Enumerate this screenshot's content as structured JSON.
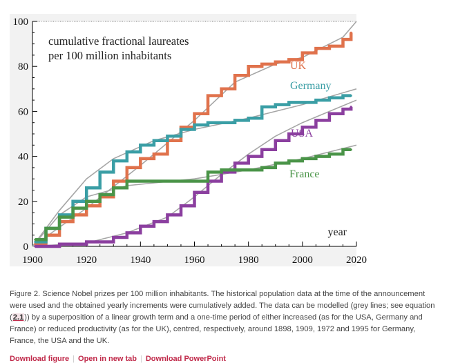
{
  "figure": {
    "caption_parts": [
      "Figure 2. Science Nobel prizes per 100 million inhabitants. The historical population data at the time of the announcement were used and the obtained yearly increments were cumulatively added. The data can be modelled (grey lines; see equation (",
      "2.1",
      ")) by a superposition of a linear growth term and a one-time period of either increased (as for the USA, Germany and France) or reduced productivity (as for the UK), centred, respectively, around 1898, 1909, 1972 and 1995 for Germany, France, the USA and the UK."
    ],
    "links": {
      "download_figure": "Download figure",
      "open_new_tab": "Open in new tab",
      "download_ppt": "Download PowerPoint"
    }
  },
  "chart_data": {
    "type": "line",
    "title": "cumulative fractional laureates\nper 100 million inhabitants",
    "xlabel": "year",
    "ylabel": "",
    "xlim": [
      1900,
      2020
    ],
    "ylim": [
      0,
      100
    ],
    "xticks": [
      1900,
      1920,
      1940,
      1960,
      1980,
      2000,
      2020
    ],
    "yticks": [
      0,
      20,
      40,
      60,
      80,
      100
    ],
    "grid": false,
    "series_labels_inline": true,
    "series": [
      {
        "name": "UK",
        "color": "#e0724c",
        "x": [
          1901,
          1905,
          1910,
          1915,
          1920,
          1925,
          1930,
          1935,
          1940,
          1945,
          1950,
          1955,
          1960,
          1965,
          1970,
          1975,
          1980,
          1985,
          1990,
          1995,
          2000,
          2005,
          2010,
          2015,
          2018
        ],
        "values": [
          1,
          5,
          11,
          14,
          18,
          22,
          29,
          35,
          39,
          41,
          47,
          53,
          59,
          67,
          70,
          76,
          80,
          81,
          82,
          83,
          86,
          88,
          89,
          92,
          95
        ],
        "model": [
          [
            1900,
            0
          ],
          [
            1920,
            17
          ],
          [
            1940,
            36
          ],
          [
            1960,
            56
          ],
          [
            1975,
            73
          ],
          [
            1990,
            81
          ],
          [
            2000,
            84
          ],
          [
            2015,
            93
          ],
          [
            2020,
            100
          ]
        ]
      },
      {
        "name": "Germany",
        "color": "#3a9ea5",
        "x": [
          1901,
          1905,
          1910,
          1915,
          1920,
          1925,
          1930,
          1935,
          1940,
          1945,
          1950,
          1955,
          1960,
          1965,
          1970,
          1975,
          1980,
          1985,
          1990,
          1995,
          2000,
          2005,
          2010,
          2015,
          2018
        ],
        "values": [
          2,
          8,
          14,
          20,
          26,
          33,
          38,
          42,
          45,
          47,
          49,
          52,
          54,
          55,
          55,
          56,
          57,
          62,
          63,
          64,
          64,
          65,
          66,
          67,
          67
        ],
        "model": [
          [
            1900,
            0
          ],
          [
            1910,
            16
          ],
          [
            1920,
            30
          ],
          [
            1930,
            39
          ],
          [
            1945,
            47
          ],
          [
            1960,
            52
          ],
          [
            1980,
            57
          ],
          [
            2000,
            63
          ],
          [
            2020,
            70
          ]
        ]
      },
      {
        "name": "USA",
        "color": "#8b3f9f",
        "x": [
          1901,
          1910,
          1920,
          1930,
          1935,
          1940,
          1945,
          1950,
          1955,
          1960,
          1965,
          1970,
          1975,
          1980,
          1985,
          1990,
          1995,
          2000,
          2005,
          2010,
          2015,
          2018
        ],
        "values": [
          0,
          1,
          2,
          4,
          6,
          9,
          11,
          14,
          18,
          24,
          29,
          33,
          37,
          40,
          43,
          47,
          50,
          53,
          56,
          59,
          61,
          62
        ],
        "model": [
          [
            1900,
            0
          ],
          [
            1920,
            1.5
          ],
          [
            1935,
            6
          ],
          [
            1950,
            13
          ],
          [
            1960,
            22
          ],
          [
            1970,
            32
          ],
          [
            1980,
            41
          ],
          [
            1990,
            49
          ],
          [
            2000,
            55
          ],
          [
            2010,
            60
          ],
          [
            2020,
            65
          ]
        ]
      },
      {
        "name": "France",
        "color": "#4a9448",
        "x": [
          1901,
          1905,
          1910,
          1915,
          1920,
          1925,
          1930,
          1935,
          1940,
          1945,
          1950,
          1955,
          1960,
          1965,
          1970,
          1975,
          1980,
          1985,
          1990,
          1995,
          2000,
          2005,
          2010,
          2015,
          2018
        ],
        "values": [
          3,
          8,
          13,
          17,
          20,
          23,
          26,
          29,
          29,
          29,
          29,
          29,
          29,
          33,
          34,
          34,
          34,
          35,
          37,
          38,
          39,
          40,
          41,
          43,
          43
        ],
        "model": [
          [
            1900,
            0
          ],
          [
            1910,
            14
          ],
          [
            1920,
            22
          ],
          [
            1935,
            27
          ],
          [
            1960,
            30
          ],
          [
            1980,
            34
          ],
          [
            2000,
            39
          ],
          [
            2020,
            45
          ]
        ]
      }
    ]
  }
}
